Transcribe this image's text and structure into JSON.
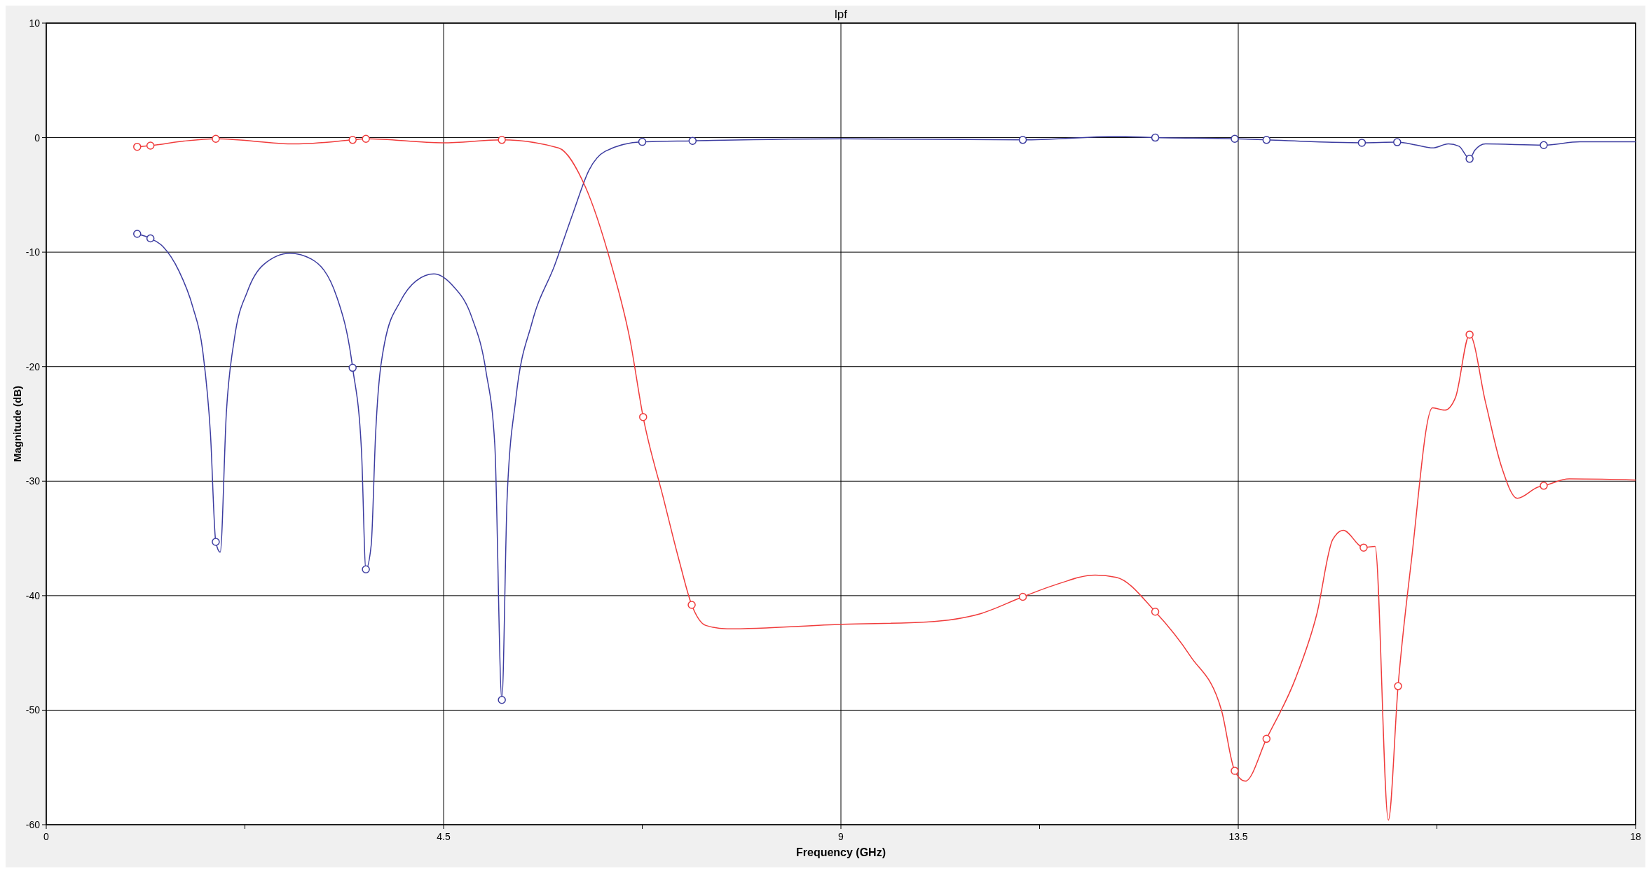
{
  "chart_data": {
    "type": "line",
    "title": "lpf",
    "xlabel": "Frequency (GHz)",
    "ylabel": "Magnitude (dB)",
    "xlim": [
      0,
      18
    ],
    "xticks": [
      0,
      {
        "value": 2.25,
        "label": null
      },
      4.5,
      {
        "value": 6.75,
        "label": null
      },
      9,
      {
        "value": 11.25,
        "label": null
      },
      13.5,
      {
        "value": 15.75,
        "label": null
      },
      18
    ],
    "ylim": [
      -60,
      10
    ],
    "yticks": [
      -60,
      -50,
      -40,
      -30,
      -20,
      -10,
      0,
      10
    ],
    "grid": true,
    "series": [
      {
        "type": "line",
        "color": "#3c3ca0",
        "marker": "none",
        "x": [
          1.03,
          1.18,
          1.32,
          1.5,
          1.66,
          1.77,
          1.86,
          1.92,
          1.97,
          2.04,
          2.13,
          2.28,
          2.46,
          2.76,
          3.0,
          3.29,
          3.47,
          3.57,
          3.62,
          3.68,
          3.73,
          3.83,
          4.01,
          4.19,
          4.39,
          4.6,
          4.82,
          4.98,
          5.08,
          5.16,
          5.22,
          5.32,
          5.5,
          5.76,
          5.97,
          6.15,
          6.33,
          6.75,
          7.32,
          9.02,
          11.06,
          12.12,
          12.56,
          13.46,
          13.82,
          14.5,
          14.9,
          15.3,
          15.52,
          15.7,
          15.88,
          16,
          16.12,
          16.18,
          16.3,
          16.96,
          17.37,
          18
        ],
        "values": [
          -8.4,
          -8.8,
          -9.5,
          -11.6,
          -14.8,
          -18.5,
          -25.9,
          -35.3,
          -36.2,
          -24,
          -17.6,
          -13.4,
          -11.1,
          -10.1,
          -10.6,
          -13.9,
          -20.1,
          -27.3,
          -37.7,
          -35.6,
          -25.9,
          -18,
          -14.3,
          -12.5,
          -11.9,
          -12.9,
          -15.7,
          -20.4,
          -26.8,
          -49.1,
          -31.4,
          -22.7,
          -16.2,
          -11.1,
          -6.5,
          -2.8,
          -1.2,
          -0.37,
          -0.28,
          -0.1,
          -0.2,
          0.1,
          0,
          -0.1,
          -0.2,
          -0.4,
          -0.45,
          -0.4,
          -0.65,
          -0.9,
          -0.55,
          -0.75,
          -1.85,
          -1.1,
          -0.55,
          -0.65,
          -0.37,
          -0.37
        ]
      },
      {
        "type": "line",
        "color": "#f03c3c",
        "marker": "none",
        "x": [
          1.03,
          1.18,
          1.56,
          1.92,
          2.82,
          3.47,
          3.62,
          4.49,
          5.16,
          5.8,
          6.1,
          6.4,
          6.61,
          6.76,
          6.99,
          7.17,
          7.31,
          7.47,
          7.71,
          9.02,
          9.97,
          10.57,
          11.06,
          11.41,
          11.88,
          12.12,
          12.56,
          12.96,
          13.31,
          13.46,
          13.58,
          13.82,
          14.15,
          14.39,
          14.57,
          14.69,
          14.92,
          15.05,
          15.2,
          15.31,
          15.46,
          15.7,
          15.84,
          15.96,
          16.12,
          16.3,
          16.48,
          16.66,
          16.9,
          16.96,
          17.25,
          18
        ],
        "values": [
          -0.8,
          -0.7,
          -0.3,
          -0.1,
          -0.55,
          -0.2,
          -0.1,
          -0.45,
          -0.2,
          -0.9,
          -4.2,
          -11.1,
          -17.6,
          -24.4,
          -31.5,
          -37,
          -40.8,
          -42.6,
          -42.9,
          -42.5,
          -42.3,
          -41.6,
          -40.1,
          -39.1,
          -38.2,
          -38.4,
          -41.4,
          -45.3,
          -50,
          -55.3,
          -56.2,
          -52.5,
          -47.2,
          -41.6,
          -35.1,
          -34.3,
          -35.8,
          -35.7,
          -59.6,
          -47.9,
          -37,
          -23.6,
          -23.8,
          -22.7,
          -17.2,
          -23.1,
          -28.7,
          -31.5,
          -30.5,
          -30.4,
          -29.8,
          -29.9
        ]
      },
      {
        "type": "scatter",
        "color": "#3c3ca0",
        "marker": "circle",
        "x": [
          1.03,
          1.18,
          1.92,
          3.47,
          3.62,
          5.16,
          6.75,
          7.32,
          11.06,
          12.56,
          13.46,
          13.82,
          14.9,
          15.3,
          16.12,
          16.96
        ],
        "values": [
          -8.4,
          -8.8,
          -35.3,
          -20.1,
          -37.7,
          -49.1,
          -0.37,
          -0.28,
          -0.2,
          0,
          -0.1,
          -0.2,
          -0.45,
          -0.4,
          -1.85,
          -0.65
        ]
      },
      {
        "type": "scatter",
        "color": "#f03c3c",
        "marker": "circle",
        "x": [
          1.03,
          1.18,
          1.92,
          3.47,
          3.62,
          5.16,
          6.76,
          7.31,
          11.06,
          12.56,
          13.46,
          13.82,
          14.92,
          15.31,
          16.12,
          16.96
        ],
        "values": [
          -0.8,
          -0.7,
          -0.1,
          -0.2,
          -0.1,
          -0.2,
          -24.4,
          -40.8,
          -40.1,
          -41.4,
          -55.3,
          -52.5,
          -35.8,
          -47.9,
          -17.2,
          -30.4
        ]
      }
    ]
  }
}
